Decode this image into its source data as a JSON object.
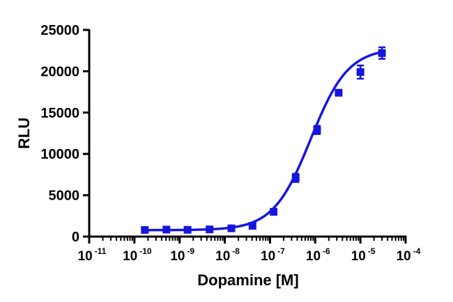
{
  "chart_data": {
    "type": "scatter",
    "xlabel": "Dopamine [M]",
    "ylabel": "RLU",
    "x_scale": "log10",
    "xlim": [
      1e-11,
      0.0001
    ],
    "ylim": [
      0,
      25000
    ],
    "x_ticks": [
      {
        "base": "10",
        "exp": "-11",
        "value": 1e-11
      },
      {
        "base": "10",
        "exp": "-10",
        "value": 1e-10
      },
      {
        "base": "10",
        "exp": "-9",
        "value": 1e-09
      },
      {
        "base": "10",
        "exp": "-8",
        "value": 1e-08
      },
      {
        "base": "10",
        "exp": "-7",
        "value": 1e-07
      },
      {
        "base": "10",
        "exp": "-6",
        "value": 1e-06
      },
      {
        "base": "10",
        "exp": "-5",
        "value": 1e-05
      },
      {
        "base": "10",
        "exp": "-4",
        "value": 0.0001
      }
    ],
    "y_ticks": [
      {
        "label": "0",
        "value": 0
      },
      {
        "label": "5000",
        "value": 5000
      },
      {
        "label": "10000",
        "value": 10000
      },
      {
        "label": "15000",
        "value": 15000
      },
      {
        "label": "20000",
        "value": 20000
      },
      {
        "label": "25000",
        "value": 25000
      }
    ],
    "grid": false,
    "legend": "none",
    "color": "#1515e0",
    "series": [
      {
        "points": [
          {
            "x": 1.7e-10,
            "y": 800,
            "err": 100
          },
          {
            "x": 5.1e-10,
            "y": 850,
            "err": 100
          },
          {
            "x": 1.5e-09,
            "y": 820,
            "err": 100
          },
          {
            "x": 4.6e-09,
            "y": 870,
            "err": 100
          },
          {
            "x": 1.4e-08,
            "y": 1000,
            "err": 150
          },
          {
            "x": 4.1e-08,
            "y": 1300,
            "err": 200
          },
          {
            "x": 1.2e-07,
            "y": 3000,
            "err": 350
          },
          {
            "x": 3.7e-07,
            "y": 7100,
            "err": 500
          },
          {
            "x": 1.1e-06,
            "y": 12900,
            "err": 500
          },
          {
            "x": 3.3e-06,
            "y": 17400,
            "err": 300
          },
          {
            "x": 1e-05,
            "y": 19900,
            "err": 800
          },
          {
            "x": 3e-05,
            "y": 22200,
            "err": 700
          }
        ],
        "fit": {
          "model": "four-parameter logistic",
          "bottom": 780,
          "top": 22800,
          "log_ec50": -6.1,
          "hill_slope": 1.05
        }
      }
    ]
  }
}
